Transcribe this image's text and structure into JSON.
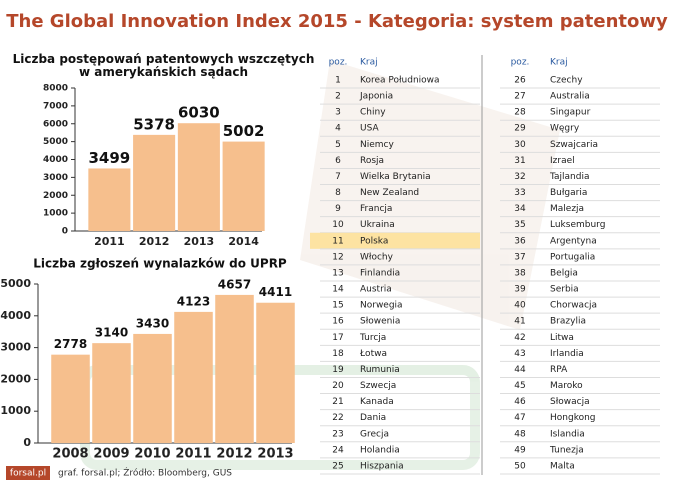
{
  "title": "The Global Innovation Index 2015 - Kategoria: system patentowy",
  "chart_data": [
    {
      "type": "bar",
      "title": "Liczba postępowań patentowych wszczętych w amerykańskich sądach",
      "categories": [
        "2011",
        "2012",
        "2013",
        "2014"
      ],
      "values": [
        3499,
        5378,
        6030,
        5002
      ],
      "color": "#f6bf8d",
      "ylim": [
        0,
        8000
      ],
      "yticks": [
        0,
        1000,
        2000,
        3000,
        4000,
        5000,
        6000,
        7000,
        8000
      ]
    },
    {
      "type": "bar",
      "title": "Liczba zgłoszeń wynalazków do UPRP",
      "categories": [
        "2008",
        "2009",
        "2010",
        "2011",
        "2012",
        "2013"
      ],
      "values": [
        2778,
        3140,
        3430,
        4123,
        4657,
        4411
      ],
      "color": "#f6bf8d",
      "ylim": [
        0,
        5000
      ],
      "yticks": [
        0,
        1000,
        2000,
        3000,
        4000,
        5000
      ]
    }
  ],
  "table": {
    "headers": [
      "poz.",
      "Kraj"
    ],
    "rows": [
      {
        "pos": 1,
        "country": "Korea Południowa"
      },
      {
        "pos": 2,
        "country": "Japonia"
      },
      {
        "pos": 3,
        "country": "Chiny"
      },
      {
        "pos": 4,
        "country": "USA"
      },
      {
        "pos": 5,
        "country": "Niemcy"
      },
      {
        "pos": 6,
        "country": "Rosja"
      },
      {
        "pos": 7,
        "country": "Wielka Brytania"
      },
      {
        "pos": 8,
        "country": "New Zealand"
      },
      {
        "pos": 9,
        "country": "Francja"
      },
      {
        "pos": 10,
        "country": "Ukraina"
      },
      {
        "pos": 11,
        "country": "Polska",
        "highlight": true
      },
      {
        "pos": 12,
        "country": "Włochy"
      },
      {
        "pos": 13,
        "country": "Finlandia"
      },
      {
        "pos": 14,
        "country": "Austria"
      },
      {
        "pos": 15,
        "country": "Norwegia"
      },
      {
        "pos": 16,
        "country": "Słowenia"
      },
      {
        "pos": 17,
        "country": "Turcja"
      },
      {
        "pos": 18,
        "country": "Łotwa"
      },
      {
        "pos": 19,
        "country": "Rumunia"
      },
      {
        "pos": 20,
        "country": "Szwecja"
      },
      {
        "pos": 21,
        "country": "Kanada"
      },
      {
        "pos": 22,
        "country": "Dania"
      },
      {
        "pos": 23,
        "country": "Grecja"
      },
      {
        "pos": 24,
        "country": "Holandia"
      },
      {
        "pos": 25,
        "country": "Hiszpania"
      },
      {
        "pos": 26,
        "country": "Czechy"
      },
      {
        "pos": 27,
        "country": "Australia"
      },
      {
        "pos": 28,
        "country": "Singapur"
      },
      {
        "pos": 29,
        "country": "Węgry"
      },
      {
        "pos": 30,
        "country": "Szwajcaria"
      },
      {
        "pos": 31,
        "country": "Izrael"
      },
      {
        "pos": 32,
        "country": "Tajlandia"
      },
      {
        "pos": 33,
        "country": "Bułgaria"
      },
      {
        "pos": 34,
        "country": "Malezja"
      },
      {
        "pos": 35,
        "country": "Luksemburg"
      },
      {
        "pos": 36,
        "country": "Argentyna"
      },
      {
        "pos": 37,
        "country": "Portugalia"
      },
      {
        "pos": 38,
        "country": "Belgia"
      },
      {
        "pos": 39,
        "country": "Serbia"
      },
      {
        "pos": 40,
        "country": "Chorwacja"
      },
      {
        "pos": 41,
        "country": "Brazylia"
      },
      {
        "pos": 42,
        "country": "Litwa"
      },
      {
        "pos": 43,
        "country": "Irlandia"
      },
      {
        "pos": 44,
        "country": "RPA"
      },
      {
        "pos": 45,
        "country": "Maroko"
      },
      {
        "pos": 46,
        "country": "Słowacja"
      },
      {
        "pos": 47,
        "country": "Hongkong"
      },
      {
        "pos": 48,
        "country": "Islandia"
      },
      {
        "pos": 49,
        "country": "Tunezja"
      },
      {
        "pos": 50,
        "country": "Malta"
      }
    ]
  },
  "footer": {
    "logo": "forsal.pl",
    "source": "graf. forsal.pl;  Źródło: Bloomberg, GUS"
  }
}
